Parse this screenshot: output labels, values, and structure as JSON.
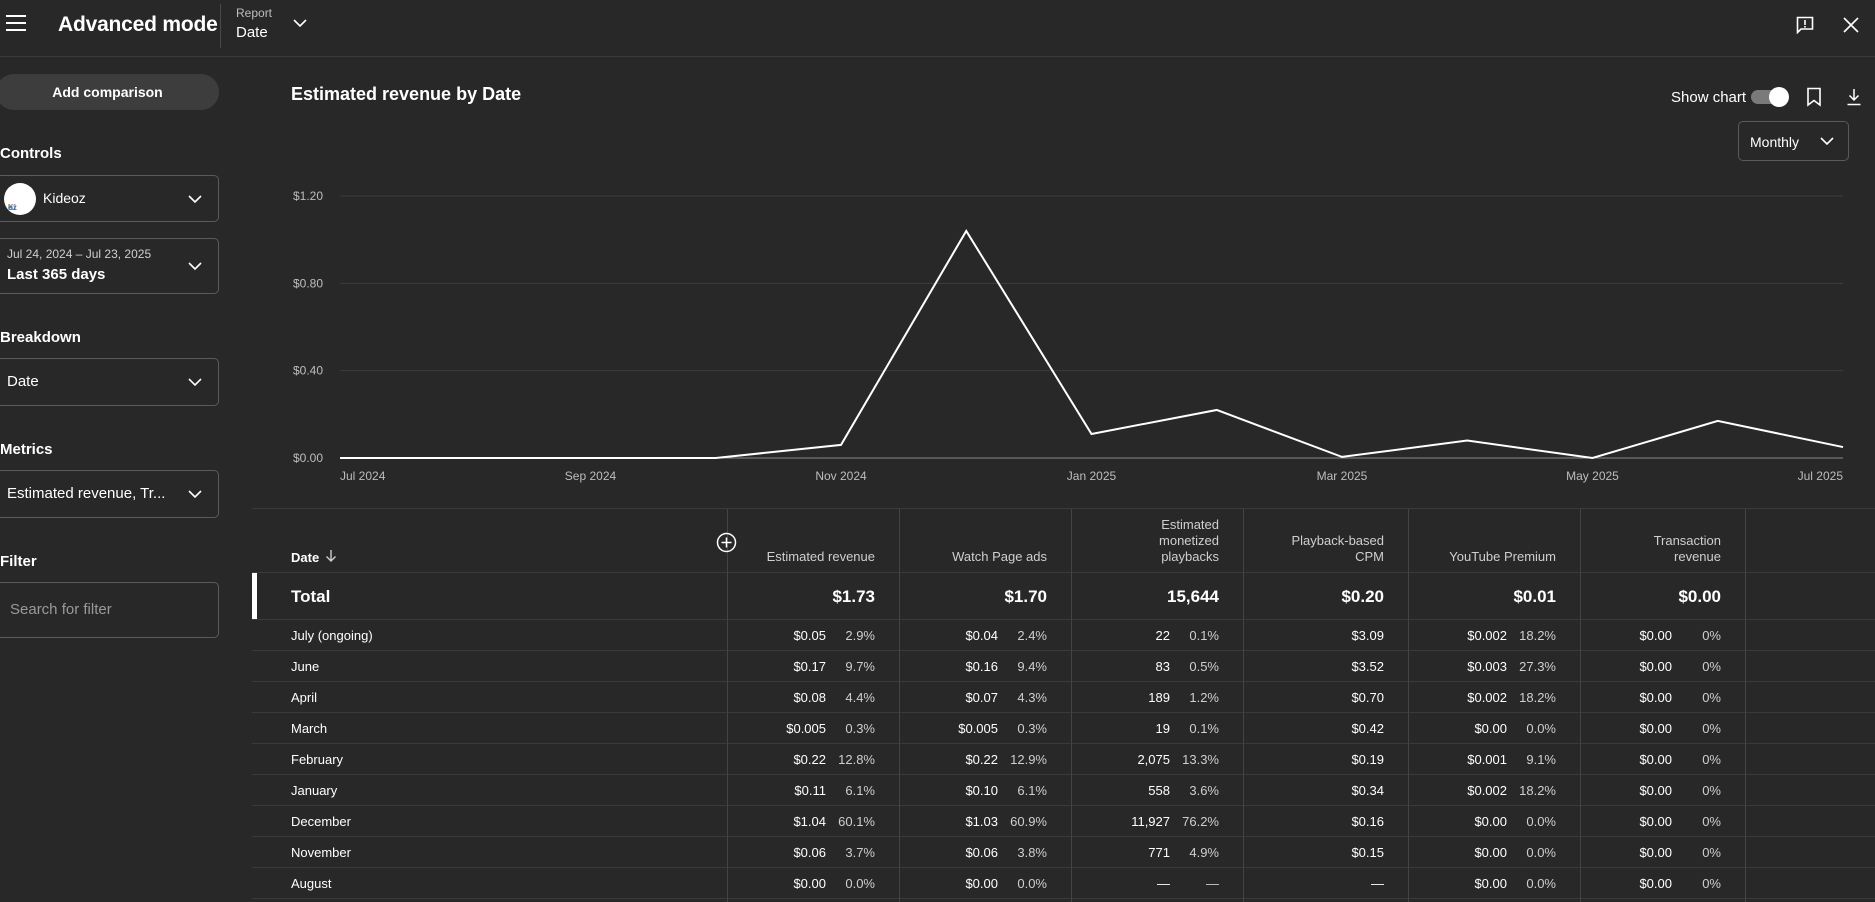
{
  "header": {
    "title": "Advanced mode",
    "report_label": "Report",
    "report_value": "Date"
  },
  "sidebar": {
    "add_comparison": "Add comparison",
    "controls_heading": "Controls",
    "channel": "Kideoz",
    "logo_text": "Kideoz",
    "date_range_sub": "Jul 24, 2024 – Jul 23, 2025",
    "date_range_main": "Last 365 days",
    "breakdown_heading": "Breakdown",
    "breakdown_value": "Date",
    "metrics_heading": "Metrics",
    "metrics_value": "Estimated revenue, Tr...",
    "filter_heading": "Filter",
    "filter_placeholder": "Search for filter"
  },
  "chart_header": {
    "title": "Estimated revenue by Date",
    "show_chart_label": "Show chart",
    "show_chart_on": true,
    "period": "Monthly"
  },
  "chart_data": {
    "type": "line",
    "title": "Estimated revenue by Date",
    "x": [
      "Jul 2024",
      "Aug 2024",
      "Sep 2024",
      "Oct 2024",
      "Nov 2024",
      "Dec 2024",
      "Jan 2025",
      "Feb 2025",
      "Mar 2025",
      "Apr 2025",
      "May 2025",
      "Jun 2025",
      "Jul 2025"
    ],
    "series": [
      {
        "values": [
          0,
          0,
          0,
          0,
          0.06,
          1.04,
          0.11,
          0.22,
          0.005,
          0.08,
          0,
          0.17,
          0.05
        ]
      }
    ],
    "x_tick_labels": [
      "Jul 2024",
      "Sep 2024",
      "Nov 2024",
      "Jan 2025",
      "Mar 2025",
      "May 2025",
      "Jul 2025"
    ],
    "x_tick_index": [
      0,
      2,
      4,
      6,
      8,
      10,
      12
    ],
    "y_ticks": [
      0,
      0.4,
      0.8,
      1.2
    ],
    "y_tick_labels": [
      "$0.00",
      "$0.40",
      "$0.80",
      "$1.20"
    ],
    "ylim": [
      0,
      1.2
    ],
    "grid": true,
    "line_color": "#ffffff"
  },
  "table": {
    "date_header": "Date",
    "columns": [
      {
        "label_lines": [
          "Estimated revenue"
        ]
      },
      {
        "label_lines": [
          "Watch Page ads"
        ]
      },
      {
        "label_lines": [
          "Estimated",
          "monetized",
          "playbacks"
        ]
      },
      {
        "label_lines": [
          "Playback-based",
          "CPM"
        ]
      },
      {
        "label_lines": [
          "YouTube Premium"
        ]
      },
      {
        "label_lines": [
          "Transaction",
          "revenue"
        ]
      }
    ],
    "total": {
      "label": "Total",
      "values": [
        "$1.73",
        "$1.70",
        "15,644",
        "$0.20",
        "$0.01",
        "$0.00"
      ]
    },
    "rows": [
      {
        "date": "July (ongoing)",
        "cells": [
          [
            "$0.05",
            "2.9%"
          ],
          [
            "$0.04",
            "2.4%"
          ],
          [
            "22",
            "0.1%"
          ],
          [
            "$3.09",
            ""
          ],
          [
            "$0.002",
            "18.2%"
          ],
          [
            "$0.00",
            "0%"
          ]
        ]
      },
      {
        "date": "June",
        "cells": [
          [
            "$0.17",
            "9.7%"
          ],
          [
            "$0.16",
            "9.4%"
          ],
          [
            "83",
            "0.5%"
          ],
          [
            "$3.52",
            ""
          ],
          [
            "$0.003",
            "27.3%"
          ],
          [
            "$0.00",
            "0%"
          ]
        ]
      },
      {
        "date": "April",
        "cells": [
          [
            "$0.08",
            "4.4%"
          ],
          [
            "$0.07",
            "4.3%"
          ],
          [
            "189",
            "1.2%"
          ],
          [
            "$0.70",
            ""
          ],
          [
            "$0.002",
            "18.2%"
          ],
          [
            "$0.00",
            "0%"
          ]
        ]
      },
      {
        "date": "March",
        "cells": [
          [
            "$0.005",
            "0.3%"
          ],
          [
            "$0.005",
            "0.3%"
          ],
          [
            "19",
            "0.1%"
          ],
          [
            "$0.42",
            ""
          ],
          [
            "$0.00",
            "0.0%"
          ],
          [
            "$0.00",
            "0%"
          ]
        ]
      },
      {
        "date": "February",
        "cells": [
          [
            "$0.22",
            "12.8%"
          ],
          [
            "$0.22",
            "12.9%"
          ],
          [
            "2,075",
            "13.3%"
          ],
          [
            "$0.19",
            ""
          ],
          [
            "$0.001",
            "9.1%"
          ],
          [
            "$0.00",
            "0%"
          ]
        ]
      },
      {
        "date": "January",
        "cells": [
          [
            "$0.11",
            "6.1%"
          ],
          [
            "$0.10",
            "6.1%"
          ],
          [
            "558",
            "3.6%"
          ],
          [
            "$0.34",
            ""
          ],
          [
            "$0.002",
            "18.2%"
          ],
          [
            "$0.00",
            "0%"
          ]
        ]
      },
      {
        "date": "December",
        "cells": [
          [
            "$1.04",
            "60.1%"
          ],
          [
            "$1.03",
            "60.9%"
          ],
          [
            "11,927",
            "76.2%"
          ],
          [
            "$0.16",
            ""
          ],
          [
            "$0.00",
            "0.0%"
          ],
          [
            "$0.00",
            "0%"
          ]
        ]
      },
      {
        "date": "November",
        "cells": [
          [
            "$0.06",
            "3.7%"
          ],
          [
            "$0.06",
            "3.8%"
          ],
          [
            "771",
            "4.9%"
          ],
          [
            "$0.15",
            ""
          ],
          [
            "$0.00",
            "0.0%"
          ],
          [
            "$0.00",
            "0%"
          ]
        ]
      },
      {
        "date": "August",
        "cells": [
          [
            "$0.00",
            "0.0%"
          ],
          [
            "$0.00",
            "0.0%"
          ],
          [
            "—",
            "—"
          ],
          [
            "—",
            ""
          ],
          [
            "$0.00",
            "0.0%"
          ],
          [
            "$0.00",
            "0%"
          ]
        ]
      }
    ]
  },
  "icons": {
    "menu": "hamburger-icon",
    "feedback": "feedback-icon",
    "close": "close-icon",
    "bookmark": "bookmark-icon",
    "download": "download-icon",
    "sort": "arrow-down-icon",
    "add_column": "add-circle-icon"
  },
  "colors": {
    "background": "#282828",
    "text": "#ffffff",
    "muted": "#cfcfcf",
    "border": "#5a5a5a"
  }
}
